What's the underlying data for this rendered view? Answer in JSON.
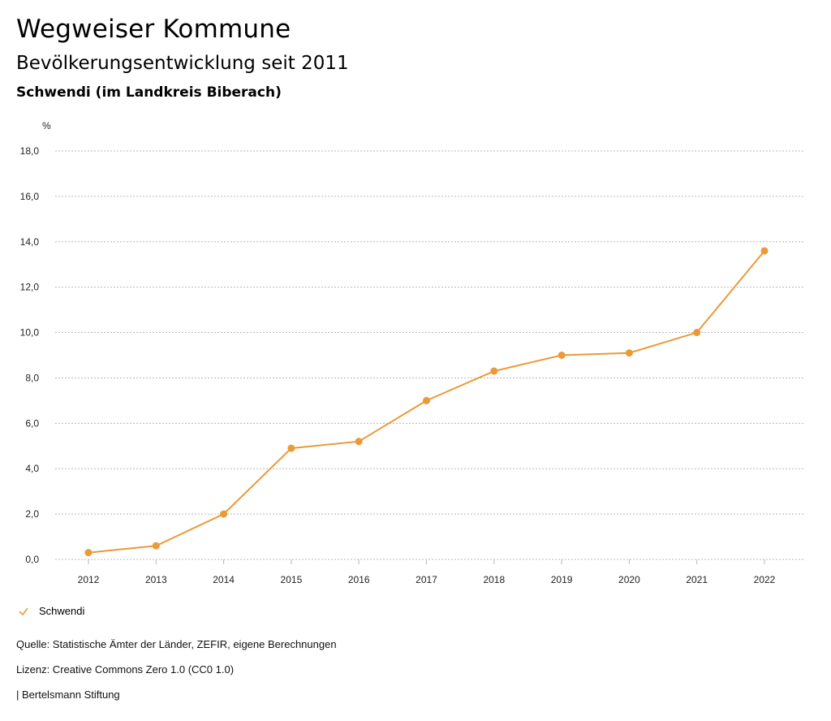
{
  "header": {
    "title": "Wegweiser Kommune",
    "subtitle": "Bevölkerungsentwicklung seit 2011",
    "region": "Schwendi (im Landkreis Biberach)"
  },
  "legend": {
    "label": "Schwendi",
    "icon": "check-icon"
  },
  "footer": {
    "source": "Quelle: Statistische Ämter der Länder, ZEFIR, eigene Berechnungen",
    "license": "Lizenz: Creative Commons Zero 1.0 (CC0 1.0)",
    "publisher": "| Bertelsmann Stiftung"
  },
  "colors": {
    "series": "#ea9a38",
    "grid": "#b8b8b8"
  },
  "chart_data": {
    "type": "line",
    "unit_label": "%",
    "x": [
      "2012",
      "2013",
      "2014",
      "2015",
      "2016",
      "2017",
      "2018",
      "2019",
      "2020",
      "2021",
      "2022"
    ],
    "series": [
      {
        "name": "Schwendi",
        "values": [
          0.3,
          0.6,
          2.0,
          4.9,
          5.2,
          7.0,
          8.3,
          9.0,
          9.1,
          10.0,
          13.6
        ]
      }
    ],
    "ylim": [
      0,
      18
    ],
    "yticks": [
      "0,0",
      "2,0",
      "4,0",
      "6,0",
      "8,0",
      "10,0",
      "12,0",
      "14,0",
      "16,0",
      "18,0"
    ],
    "grid": true,
    "legend_position": "bottom-left"
  }
}
